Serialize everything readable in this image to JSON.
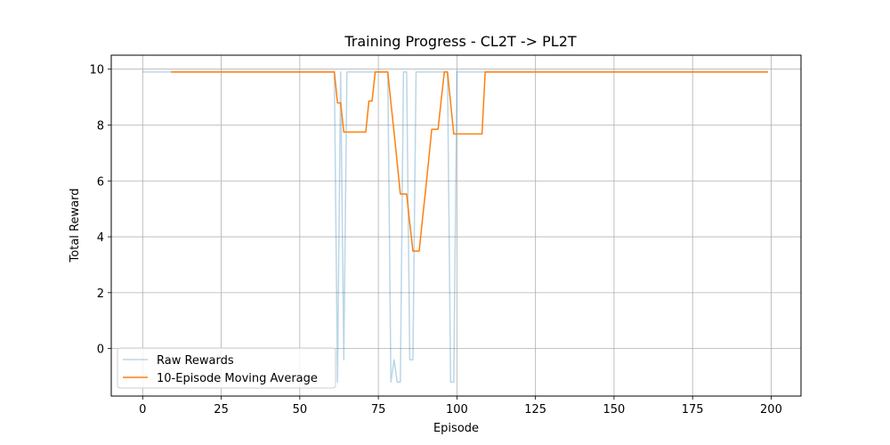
{
  "chart_data": {
    "type": "line",
    "title": "Training Progress - CL2T -> PL2T",
    "xlabel": "Episode",
    "ylabel": "Total Reward",
    "xlim": [
      -10,
      209.5
    ],
    "ylim": [
      -1.7,
      10.5
    ],
    "xticks": [
      0,
      25,
      50,
      75,
      100,
      125,
      150,
      175,
      200
    ],
    "yticks": [
      0,
      2,
      4,
      6,
      8,
      10
    ],
    "grid": true,
    "legend_position": "lower-left",
    "series": [
      {
        "name": "Raw Rewards",
        "color": "#1f77b4",
        "opacity": 0.3,
        "x": [
          0,
          1,
          2,
          3,
          4,
          5,
          6,
          7,
          8,
          9,
          10,
          11,
          12,
          13,
          14,
          15,
          16,
          17,
          18,
          19,
          20,
          21,
          22,
          23,
          24,
          25,
          26,
          27,
          28,
          29,
          30,
          31,
          32,
          33,
          34,
          35,
          36,
          37,
          38,
          39,
          40,
          41,
          42,
          43,
          44,
          45,
          46,
          47,
          48,
          49,
          50,
          51,
          52,
          53,
          54,
          55,
          56,
          57,
          58,
          59,
          60,
          61,
          62,
          63,
          64,
          65,
          66,
          67,
          68,
          69,
          70,
          71,
          72,
          73,
          74,
          75,
          76,
          77,
          78,
          79,
          80,
          81,
          82,
          83,
          84,
          85,
          86,
          87,
          88,
          89,
          90,
          91,
          92,
          93,
          94,
          95,
          96,
          97,
          98,
          99,
          100,
          101,
          102,
          103,
          104,
          105,
          106,
          107,
          108,
          109,
          110,
          111,
          112,
          113,
          114,
          115,
          116,
          117,
          118,
          119,
          120,
          121,
          122,
          123,
          124,
          125,
          126,
          127,
          128,
          129,
          130,
          131,
          132,
          133,
          134,
          135,
          136,
          137,
          138,
          139,
          140,
          141,
          142,
          143,
          144,
          145,
          146,
          147,
          148,
          149,
          150,
          151,
          152,
          153,
          154,
          155,
          156,
          157,
          158,
          159,
          160,
          161,
          162,
          163,
          164,
          165,
          166,
          167,
          168,
          169,
          170,
          171,
          172,
          173,
          174,
          175,
          176,
          177,
          178,
          179,
          180,
          181,
          182,
          183,
          184,
          185,
          186,
          187,
          188,
          189,
          190,
          191,
          192,
          193,
          194,
          195,
          196,
          197,
          198,
          199
        ],
        "y": [
          9.9,
          9.9,
          9.9,
          9.9,
          9.9,
          9.9,
          9.9,
          9.9,
          9.9,
          9.9,
          9.9,
          9.9,
          9.9,
          9.9,
          9.9,
          9.9,
          9.9,
          9.9,
          9.9,
          9.9,
          9.9,
          9.9,
          9.9,
          9.9,
          9.9,
          9.9,
          9.9,
          9.9,
          9.9,
          9.9,
          9.9,
          9.9,
          9.9,
          9.9,
          9.9,
          9.9,
          9.9,
          9.9,
          9.9,
          9.9,
          9.9,
          9.9,
          9.9,
          9.9,
          9.9,
          9.9,
          9.9,
          9.9,
          9.9,
          9.9,
          9.9,
          9.9,
          9.9,
          9.9,
          9.9,
          9.9,
          9.9,
          9.9,
          9.9,
          9.9,
          9.9,
          9.9,
          -1.2,
          9.9,
          -0.4,
          9.9,
          9.9,
          9.9,
          9.9,
          9.9,
          9.9,
          9.9,
          9.9,
          9.9,
          9.9,
          9.9,
          9.9,
          9.9,
          9.9,
          -1.2,
          -0.4,
          -1.2,
          -1.2,
          9.9,
          9.9,
          -0.4,
          -0.4,
          9.9,
          9.9,
          9.9,
          9.9,
          9.9,
          9.9,
          9.9,
          9.9,
          9.9,
          9.9,
          9.9,
          -1.2,
          -1.2,
          9.9,
          9.9,
          9.9,
          9.9,
          9.9,
          9.9,
          9.9,
          9.9,
          9.9,
          9.9,
          9.9,
          9.9,
          9.9,
          9.9,
          9.9,
          9.9,
          9.9,
          9.9,
          9.9,
          9.9,
          9.9,
          9.9,
          9.9,
          9.9,
          9.9,
          9.9,
          9.9,
          9.9,
          9.9,
          9.9,
          9.9,
          9.9,
          9.9,
          9.9,
          9.9,
          9.9,
          9.9,
          9.9,
          9.9,
          9.9,
          9.9,
          9.9,
          9.9,
          9.9,
          9.9,
          9.9,
          9.9,
          9.9,
          9.9,
          9.9,
          9.9,
          9.9,
          9.9,
          9.9,
          9.9,
          9.9,
          9.9,
          9.9,
          9.9,
          9.9,
          9.9,
          9.9,
          9.9,
          9.9,
          9.9,
          9.9,
          9.9,
          9.9,
          9.9,
          9.9,
          9.9,
          9.9,
          9.9,
          9.9,
          9.9,
          9.9,
          9.9,
          9.9,
          9.9,
          9.9,
          9.9,
          9.9,
          9.9,
          9.9,
          9.9,
          9.9,
          9.9,
          9.9,
          9.9,
          9.9,
          9.9,
          9.9,
          9.9,
          9.9,
          9.9,
          9.9,
          9.9,
          9.9,
          9.9,
          9.9
        ]
      },
      {
        "name": "10-Episode Moving Average",
        "color": "#ff7f0e",
        "opacity": 1,
        "x": [
          9,
          61,
          62,
          63,
          64,
          71,
          72,
          73,
          74,
          75,
          76,
          77,
          78,
          79,
          80,
          81,
          82,
          83,
          84,
          85,
          86,
          87,
          88,
          89,
          90,
          91,
          92,
          93,
          94,
          95,
          96,
          97,
          98,
          99,
          100,
          101,
          102,
          103,
          104,
          105,
          106,
          107,
          108,
          109,
          199
        ],
        "y": [
          9.9,
          9.9,
          8.79,
          8.79,
          7.75,
          7.75,
          8.86,
          8.86,
          9.9,
          9.9,
          9.9,
          9.9,
          9.9,
          8.79,
          7.75,
          6.64,
          5.53,
          5.53,
          5.53,
          4.49,
          3.49,
          3.49,
          3.49,
          4.59,
          5.63,
          6.74,
          7.85,
          7.85,
          7.85,
          8.89,
          9.9,
          9.9,
          8.79,
          7.68,
          7.68,
          7.68,
          7.68,
          7.68,
          7.68,
          7.68,
          7.68,
          7.68,
          7.68,
          9.9,
          9.9
        ]
      }
    ]
  }
}
